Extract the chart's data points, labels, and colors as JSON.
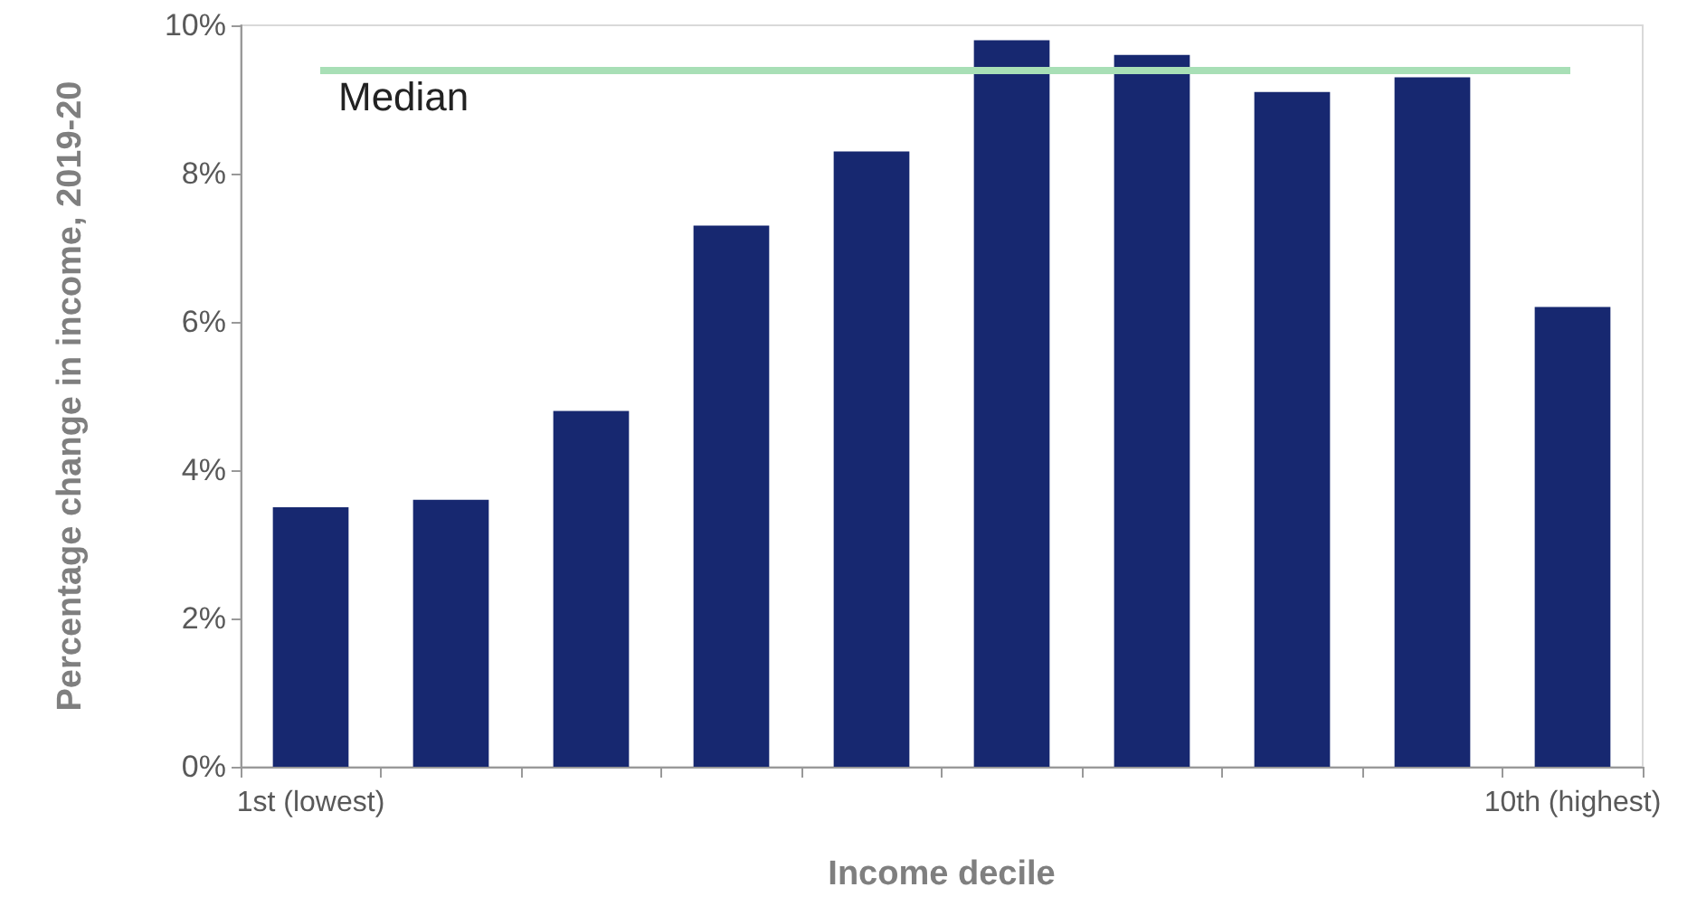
{
  "chart_data": {
    "type": "bar",
    "xlabel": "Income decile",
    "ylabel": "Percentage change in income, 2019-20",
    "categories": [
      "1st (lowest)",
      null,
      null,
      null,
      null,
      null,
      null,
      null,
      null,
      "10th (highest)"
    ],
    "values": [
      3.5,
      3.6,
      4.8,
      7.3,
      8.3,
      9.8,
      9.6,
      9.1,
      9.3,
      6.2
    ],
    "color": "#172870",
    "ylim": [
      0,
      10
    ],
    "yticks": [
      {
        "value": 0,
        "label": "0%"
      },
      {
        "value": 2,
        "label": "2%"
      },
      {
        "value": 4,
        "label": "4%"
      },
      {
        "value": 6,
        "label": "6%"
      },
      {
        "value": 8,
        "label": "8%"
      },
      {
        "value": 10,
        "label": "10%"
      }
    ],
    "ref_lines": [
      {
        "axis": "y",
        "value": 9.4,
        "label": "Median",
        "color": "#a8dfb6"
      }
    ],
    "grid": false
  }
}
